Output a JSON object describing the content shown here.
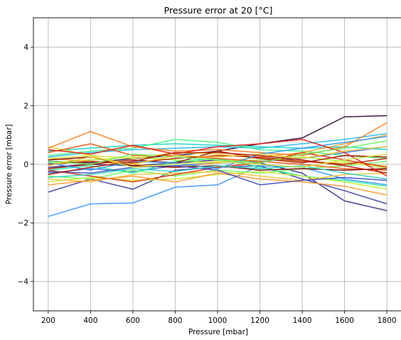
{
  "chart_data": {
    "type": "line",
    "title": "Pressure error at 20 [°C]",
    "xlabel": "Pressure [mbar]",
    "ylabel": "Pressure error [mbar]",
    "x": [
      200,
      400,
      600,
      800,
      1000,
      1200,
      1400,
      1600,
      1800
    ],
    "x_ticks": [
      "200",
      "400",
      "600",
      "800",
      "1000",
      "1200",
      "1400",
      "1600",
      "1800"
    ],
    "y_ticks": [
      "−4",
      "−2",
      "0",
      "2",
      "4"
    ],
    "y_tick_values": [
      -4,
      -2,
      0,
      2,
      4
    ],
    "xlim": [
      130,
      1870
    ],
    "ylim": [
      -5,
      5
    ],
    "grid": true,
    "colormap": "turbo",
    "series": [
      {
        "color": "#30123b",
        "values": [
          0.1,
          0.05,
          0.2,
          0.3,
          0.45,
          0.7,
          0.9,
          1.62,
          1.66
        ]
      },
      {
        "color": "#3e3891",
        "values": [
          -0.1,
          0.0,
          -0.05,
          0.05,
          0.15,
          0.05,
          -0.3,
          -1.25,
          -1.58
        ]
      },
      {
        "color": "#4145ab",
        "values": [
          -0.95,
          -0.5,
          -0.85,
          -0.2,
          -0.1,
          -0.05,
          -0.5,
          -0.9,
          -1.35
        ]
      },
      {
        "color": "#4675ed",
        "values": [
          -0.3,
          -0.15,
          -0.25,
          -0.05,
          0.05,
          0.1,
          0.2,
          0.4,
          0.6
        ]
      },
      {
        "color": "#3e9bfe",
        "values": [
          -1.78,
          -1.35,
          -1.32,
          -0.78,
          -0.7,
          -0.05,
          -0.1,
          -0.5,
          -0.7
        ]
      },
      {
        "color": "#28bceb",
        "values": [
          0.25,
          0.4,
          0.5,
          0.55,
          0.6,
          0.55,
          0.7,
          0.85,
          1.05
        ]
      },
      {
        "color": "#18d6cb",
        "values": [
          0.45,
          0.55,
          0.65,
          0.7,
          0.65,
          0.6,
          0.55,
          0.6,
          0.5
        ]
      },
      {
        "color": "#26eda6",
        "values": [
          -0.2,
          -0.05,
          -0.3,
          0.1,
          0.2,
          -0.1,
          -0.4,
          -0.55,
          -0.75
        ]
      },
      {
        "color": "#46f884",
        "values": [
          0.3,
          0.45,
          0.55,
          0.85,
          0.75,
          0.5,
          0.45,
          0.3,
          0.2
        ]
      },
      {
        "color": "#74fe5d",
        "values": [
          -0.4,
          -0.5,
          -0.2,
          -0.4,
          -0.2,
          -0.3,
          -0.15,
          -0.05,
          0.1
        ]
      },
      {
        "color": "#a4fc3b",
        "values": [
          0.05,
          0.15,
          0.25,
          0.15,
          0.05,
          0.15,
          0.25,
          0.1,
          -0.15
        ]
      },
      {
        "color": "#c3f134",
        "values": [
          -0.6,
          -0.45,
          -0.55,
          -0.5,
          -0.35,
          -0.25,
          -0.4,
          -0.6,
          -0.85
        ]
      },
      {
        "color": "#e1dd37",
        "values": [
          0.6,
          0.3,
          0.2,
          0.4,
          0.35,
          0.2,
          0.1,
          0.05,
          -0.05
        ]
      },
      {
        "color": "#f6c33a",
        "values": [
          -0.5,
          -0.6,
          -0.35,
          -0.3,
          -0.25,
          -0.4,
          -0.55,
          -0.35,
          -0.3
        ]
      },
      {
        "color": "#fea331",
        "values": [
          0.2,
          0.1,
          0.0,
          -0.1,
          0.05,
          0.25,
          0.4,
          0.7,
          1.0
        ]
      },
      {
        "color": "#fb8022",
        "values": [
          0.55,
          1.12,
          0.6,
          0.45,
          0.5,
          0.4,
          0.3,
          0.6,
          1.42
        ]
      },
      {
        "color": "#ef5911",
        "values": [
          0.4,
          0.7,
          0.3,
          0.3,
          0.2,
          0.1,
          0.0,
          -0.15,
          -0.2
        ]
      },
      {
        "color": "#dc3705",
        "values": [
          -0.2,
          -0.4,
          -0.6,
          -0.35,
          -0.1,
          0.05,
          0.4,
          0.15,
          -0.1
        ]
      },
      {
        "color": "#c22402",
        "values": [
          0.0,
          0.1,
          0.05,
          0.2,
          0.3,
          0.25,
          0.1,
          0.0,
          0.2
        ]
      },
      {
        "color": "#a01101",
        "values": [
          -0.15,
          0.0,
          0.15,
          0.05,
          0.45,
          0.2,
          0.05,
          0.3,
          0.25
        ]
      },
      {
        "color": "#7a0403",
        "values": [
          0.15,
          0.25,
          -0.05,
          -0.1,
          -0.05,
          -0.2,
          -0.15,
          -0.2,
          -0.15
        ]
      },
      {
        "color": "#2f9df5",
        "values": [
          0.05,
          -0.2,
          0.1,
          0.05,
          -0.15,
          0.35,
          0.55,
          0.75,
          0.95
        ]
      },
      {
        "color": "#ff9a2e",
        "values": [
          -0.7,
          -0.55,
          -0.4,
          -0.6,
          -0.3,
          -0.5,
          -0.6,
          -0.75,
          -1.05
        ]
      },
      {
        "color": "#e8231a",
        "values": [
          0.5,
          0.35,
          0.65,
          0.35,
          0.6,
          0.7,
          0.85,
          0.4,
          -0.4
        ]
      },
      {
        "color": "#6ef25f",
        "values": [
          0.1,
          0.0,
          0.35,
          0.25,
          0.15,
          0.05,
          0.35,
          0.55,
          0.8
        ]
      },
      {
        "color": "#444fc0",
        "values": [
          -0.25,
          -0.3,
          -0.1,
          -0.05,
          -0.2,
          -0.7,
          -0.55,
          -0.45,
          -0.55
        ]
      },
      {
        "color": "#f0c32f",
        "values": [
          -0.05,
          0.25,
          0.0,
          0.3,
          0.25,
          0.35,
          0.2,
          0.45,
          0.6
        ]
      },
      {
        "color": "#2fd4c2",
        "values": [
          -0.45,
          -0.35,
          -0.15,
          -0.25,
          -0.05,
          -0.15,
          -0.05,
          -0.3,
          -0.5
        ]
      },
      {
        "color": "#b81c03",
        "values": [
          -0.35,
          -0.1,
          0.1,
          0.4,
          0.4,
          0.3,
          0.15,
          -0.05,
          -0.3
        ]
      },
      {
        "color": "#d8e53a",
        "values": [
          0.2,
          0.3,
          -0.1,
          0.0,
          0.1,
          0.0,
          -0.1,
          0.15,
          0.35
        ]
      }
    ]
  }
}
